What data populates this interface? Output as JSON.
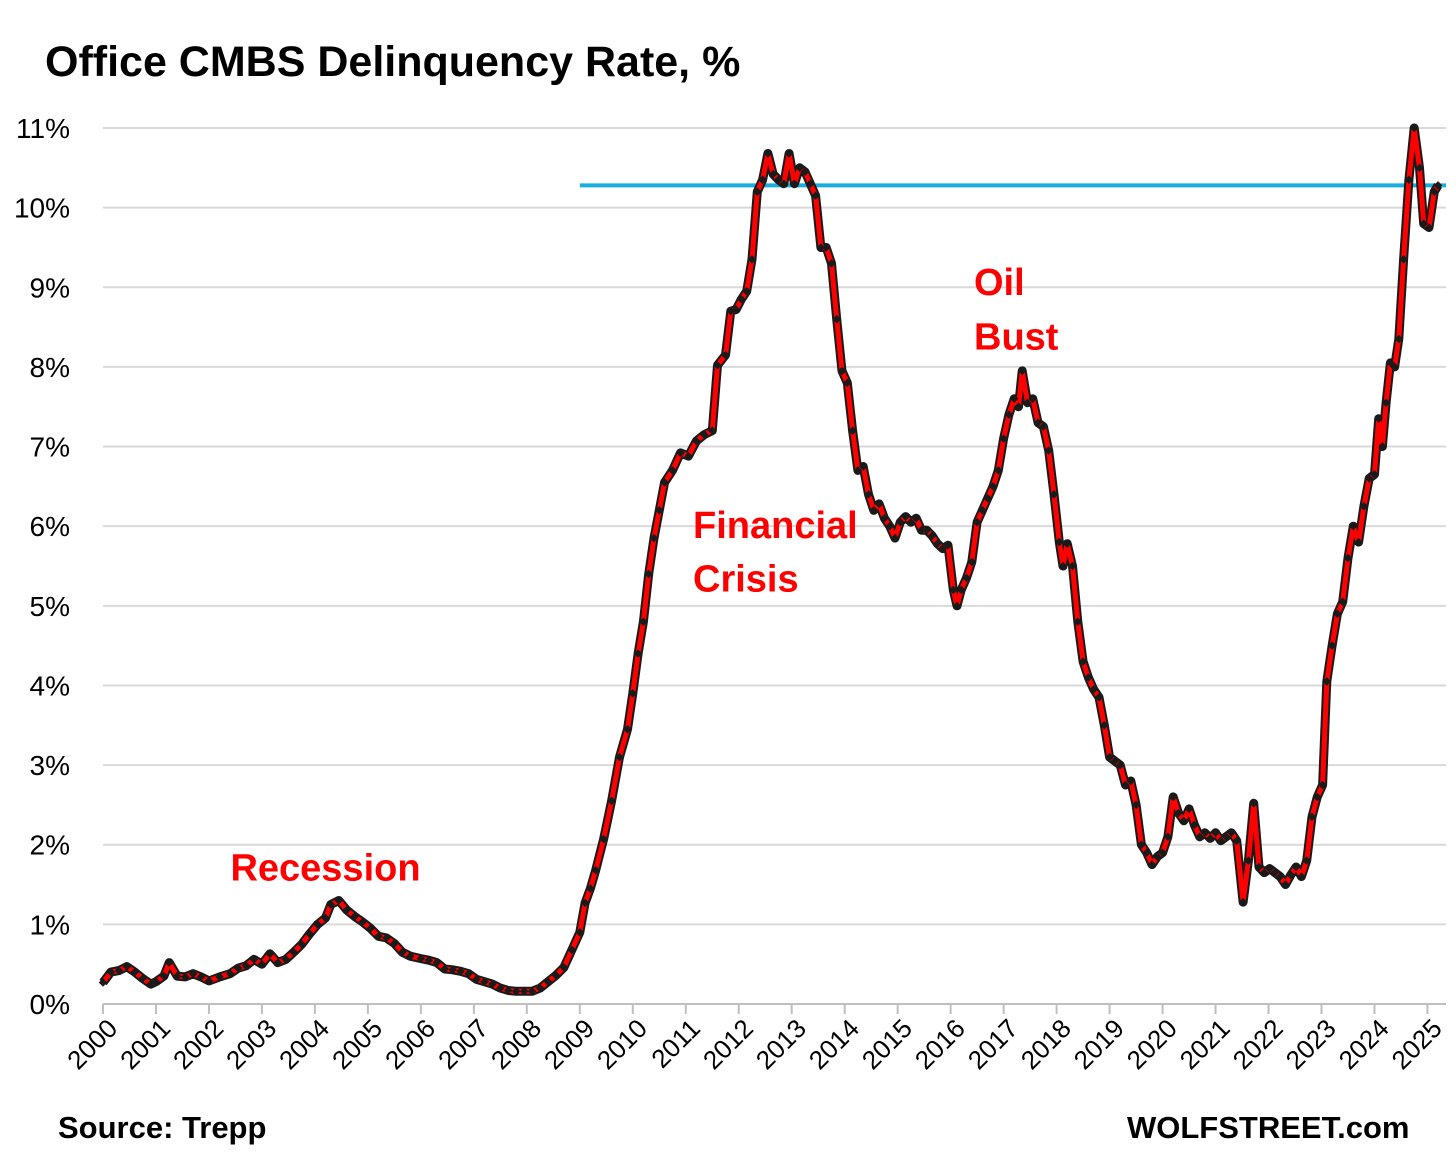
{
  "header": {
    "title": "Office CMBS Delinquency Rate, %"
  },
  "footer": {
    "source": "Source: Trepp",
    "brand": "WOLFSTREET.com"
  },
  "chart_data": {
    "type": "line",
    "title": "Office CMBS Delinquency Rate, %",
    "xlabel": "",
    "ylabel": "",
    "ylim": [
      0,
      11
    ],
    "xlim": [
      2000,
      2025.35
    ],
    "y_ticks": [
      "0%",
      "1%",
      "2%",
      "3%",
      "4%",
      "5%",
      "6%",
      "7%",
      "8%",
      "9%",
      "10%",
      "11%"
    ],
    "x_ticks": [
      "2000",
      "2001",
      "2002",
      "2003",
      "2004",
      "2005",
      "2006",
      "2007",
      "2008",
      "2009",
      "2010",
      "2011",
      "2012",
      "2013",
      "2014",
      "2015",
      "2016",
      "2017",
      "2018",
      "2019",
      "2020",
      "2021",
      "2022",
      "2023",
      "2024",
      "2025"
    ],
    "grid": "horizontal",
    "colors": {
      "line": "#ff0000",
      "marker": "#1a1a1a",
      "reference": "#1aaee0",
      "grid": "#d9d9d9",
      "annotation": "#ff0000"
    },
    "reference_line": {
      "y": 10.28,
      "x_start": 2009.0,
      "x_end": 2025.35
    },
    "annotations": [
      {
        "text": "Recession",
        "x": 2004.2,
        "y": 1.55
      },
      {
        "text": "Financial",
        "x": 2011.95,
        "y": 5.85
      },
      {
        "text": "Crisis",
        "x": 2011.05,
        "y": 5.18
      },
      {
        "text": "Oil",
        "x": 2017.15,
        "y": 8.9
      },
      {
        "text": "Bust",
        "x": 2017.0,
        "y": 8.22
      }
    ],
    "series": [
      {
        "points": [
          [
            2000.0,
            0.27
          ],
          [
            2000.15,
            0.4
          ],
          [
            2000.3,
            0.42
          ],
          [
            2000.45,
            0.47
          ],
          [
            2000.6,
            0.4
          ],
          [
            2000.75,
            0.32
          ],
          [
            2000.9,
            0.25
          ],
          [
            2001.0,
            0.28
          ],
          [
            2001.15,
            0.35
          ],
          [
            2001.25,
            0.52
          ],
          [
            2001.4,
            0.35
          ],
          [
            2001.55,
            0.34
          ],
          [
            2001.7,
            0.38
          ],
          [
            2001.85,
            0.34
          ],
          [
            2002.0,
            0.29
          ],
          [
            2002.2,
            0.34
          ],
          [
            2002.4,
            0.38
          ],
          [
            2002.55,
            0.45
          ],
          [
            2002.7,
            0.48
          ],
          [
            2002.85,
            0.56
          ],
          [
            2003.0,
            0.5
          ],
          [
            2003.15,
            0.63
          ],
          [
            2003.3,
            0.52
          ],
          [
            2003.45,
            0.56
          ],
          [
            2003.6,
            0.65
          ],
          [
            2003.75,
            0.75
          ],
          [
            2003.9,
            0.88
          ],
          [
            2004.05,
            1.0
          ],
          [
            2004.2,
            1.08
          ],
          [
            2004.3,
            1.25
          ],
          [
            2004.45,
            1.3
          ],
          [
            2004.6,
            1.18
          ],
          [
            2004.75,
            1.1
          ],
          [
            2004.9,
            1.03
          ],
          [
            2005.05,
            0.95
          ],
          [
            2005.2,
            0.85
          ],
          [
            2005.35,
            0.83
          ],
          [
            2005.5,
            0.76
          ],
          [
            2005.65,
            0.65
          ],
          [
            2005.8,
            0.6
          ],
          [
            2006.0,
            0.57
          ],
          [
            2006.15,
            0.55
          ],
          [
            2006.3,
            0.52
          ],
          [
            2006.45,
            0.44
          ],
          [
            2006.6,
            0.43
          ],
          [
            2006.75,
            0.41
          ],
          [
            2006.9,
            0.38
          ],
          [
            2007.05,
            0.31
          ],
          [
            2007.2,
            0.28
          ],
          [
            2007.35,
            0.25
          ],
          [
            2007.5,
            0.2
          ],
          [
            2007.65,
            0.17
          ],
          [
            2007.8,
            0.16
          ],
          [
            2007.95,
            0.16
          ],
          [
            2008.1,
            0.16
          ],
          [
            2008.25,
            0.2
          ],
          [
            2008.4,
            0.28
          ],
          [
            2008.55,
            0.36
          ],
          [
            2008.7,
            0.46
          ],
          [
            2008.85,
            0.68
          ],
          [
            2009.0,
            0.9
          ],
          [
            2009.1,
            1.27
          ],
          [
            2009.2,
            1.45
          ],
          [
            2009.3,
            1.68
          ],
          [
            2009.45,
            2.07
          ],
          [
            2009.6,
            2.55
          ],
          [
            2009.75,
            3.1
          ],
          [
            2009.9,
            3.45
          ],
          [
            2010.0,
            3.9
          ],
          [
            2010.1,
            4.4
          ],
          [
            2010.2,
            4.8
          ],
          [
            2010.3,
            5.4
          ],
          [
            2010.4,
            5.85
          ],
          [
            2010.5,
            6.2
          ],
          [
            2010.6,
            6.55
          ],
          [
            2010.75,
            6.7
          ],
          [
            2010.9,
            6.92
          ],
          [
            2011.05,
            6.88
          ],
          [
            2011.2,
            7.07
          ],
          [
            2011.35,
            7.15
          ],
          [
            2011.5,
            7.2
          ],
          [
            2011.6,
            8.02
          ],
          [
            2011.75,
            8.15
          ],
          [
            2011.85,
            8.7
          ],
          [
            2011.95,
            8.72
          ],
          [
            2012.05,
            8.85
          ],
          [
            2012.15,
            8.95
          ],
          [
            2012.25,
            9.35
          ],
          [
            2012.35,
            10.2
          ],
          [
            2012.45,
            10.35
          ],
          [
            2012.55,
            10.68
          ],
          [
            2012.65,
            10.42
          ],
          [
            2012.75,
            10.35
          ],
          [
            2012.85,
            10.3
          ],
          [
            2012.95,
            10.68
          ],
          [
            2013.05,
            10.3
          ],
          [
            2013.15,
            10.5
          ],
          [
            2013.25,
            10.45
          ],
          [
            2013.35,
            10.3
          ],
          [
            2013.45,
            10.15
          ],
          [
            2013.55,
            9.5
          ],
          [
            2013.65,
            9.5
          ],
          [
            2013.75,
            9.3
          ],
          [
            2013.85,
            8.6
          ],
          [
            2013.95,
            7.95
          ],
          [
            2014.05,
            7.8
          ],
          [
            2014.15,
            7.2
          ],
          [
            2014.25,
            6.7
          ],
          [
            2014.35,
            6.75
          ],
          [
            2014.45,
            6.4
          ],
          [
            2014.55,
            6.2
          ],
          [
            2014.65,
            6.28
          ],
          [
            2014.75,
            6.1
          ],
          [
            2014.85,
            6.0
          ],
          [
            2014.95,
            5.85
          ],
          [
            2015.05,
            6.05
          ],
          [
            2015.15,
            6.12
          ],
          [
            2015.25,
            6.05
          ],
          [
            2015.35,
            6.1
          ],
          [
            2015.45,
            5.95
          ],
          [
            2015.55,
            5.95
          ],
          [
            2015.65,
            5.88
          ],
          [
            2015.75,
            5.78
          ],
          [
            2015.85,
            5.72
          ],
          [
            2015.95,
            5.76
          ],
          [
            2016.05,
            5.2
          ],
          [
            2016.12,
            5.0
          ],
          [
            2016.2,
            5.2
          ],
          [
            2016.3,
            5.35
          ],
          [
            2016.4,
            5.55
          ],
          [
            2016.5,
            6.05
          ],
          [
            2016.6,
            6.2
          ],
          [
            2016.7,
            6.35
          ],
          [
            2016.8,
            6.5
          ],
          [
            2016.9,
            6.7
          ],
          [
            2017.0,
            7.1
          ],
          [
            2017.1,
            7.4
          ],
          [
            2017.2,
            7.6
          ],
          [
            2017.28,
            7.5
          ],
          [
            2017.35,
            7.95
          ],
          [
            2017.45,
            7.55
          ],
          [
            2017.55,
            7.6
          ],
          [
            2017.65,
            7.3
          ],
          [
            2017.75,
            7.25
          ],
          [
            2017.85,
            6.95
          ],
          [
            2017.95,
            6.4
          ],
          [
            2018.05,
            5.8
          ],
          [
            2018.12,
            5.5
          ],
          [
            2018.2,
            5.78
          ],
          [
            2018.3,
            5.5
          ],
          [
            2018.4,
            4.8
          ],
          [
            2018.5,
            4.3
          ],
          [
            2018.6,
            4.1
          ],
          [
            2018.7,
            3.95
          ],
          [
            2018.8,
            3.85
          ],
          [
            2018.9,
            3.5
          ],
          [
            2019.0,
            3.1
          ],
          [
            2019.1,
            3.05
          ],
          [
            2019.2,
            3.0
          ],
          [
            2019.3,
            2.75
          ],
          [
            2019.4,
            2.8
          ],
          [
            2019.5,
            2.5
          ],
          [
            2019.6,
            2.0
          ],
          [
            2019.7,
            1.9
          ],
          [
            2019.8,
            1.75
          ],
          [
            2019.9,
            1.85
          ],
          [
            2020.0,
            1.9
          ],
          [
            2020.1,
            2.1
          ],
          [
            2020.2,
            2.6
          ],
          [
            2020.3,
            2.4
          ],
          [
            2020.4,
            2.3
          ],
          [
            2020.5,
            2.45
          ],
          [
            2020.6,
            2.25
          ],
          [
            2020.7,
            2.1
          ],
          [
            2020.8,
            2.15
          ],
          [
            2020.9,
            2.08
          ],
          [
            2021.0,
            2.15
          ],
          [
            2021.1,
            2.05
          ],
          [
            2021.2,
            2.1
          ],
          [
            2021.3,
            2.15
          ],
          [
            2021.4,
            2.05
          ],
          [
            2021.52,
            1.28
          ],
          [
            2021.62,
            1.8
          ],
          [
            2021.72,
            2.52
          ],
          [
            2021.82,
            1.72
          ],
          [
            2021.92,
            1.65
          ],
          [
            2022.02,
            1.7
          ],
          [
            2022.12,
            1.65
          ],
          [
            2022.22,
            1.6
          ],
          [
            2022.32,
            1.5
          ],
          [
            2022.42,
            1.62
          ],
          [
            2022.52,
            1.72
          ],
          [
            2022.62,
            1.6
          ],
          [
            2022.72,
            1.8
          ],
          [
            2022.82,
            2.35
          ],
          [
            2022.92,
            2.6
          ],
          [
            2023.02,
            2.75
          ],
          [
            2023.1,
            4.05
          ],
          [
            2023.2,
            4.5
          ],
          [
            2023.3,
            4.9
          ],
          [
            2023.4,
            5.05
          ],
          [
            2023.5,
            5.6
          ],
          [
            2023.6,
            6.0
          ],
          [
            2023.7,
            5.8
          ],
          [
            2023.8,
            6.25
          ],
          [
            2023.9,
            6.6
          ],
          [
            2024.0,
            6.65
          ],
          [
            2024.08,
            7.35
          ],
          [
            2024.15,
            7.0
          ],
          [
            2024.22,
            7.55
          ],
          [
            2024.3,
            8.05
          ],
          [
            2024.38,
            8.0
          ],
          [
            2024.46,
            8.35
          ],
          [
            2024.55,
            9.35
          ],
          [
            2024.65,
            10.35
          ],
          [
            2024.75,
            11.0
          ],
          [
            2024.85,
            10.5
          ],
          [
            2024.93,
            9.8
          ],
          [
            2025.03,
            9.75
          ],
          [
            2025.13,
            10.2
          ],
          [
            2025.2,
            10.28
          ]
        ]
      }
    ]
  }
}
